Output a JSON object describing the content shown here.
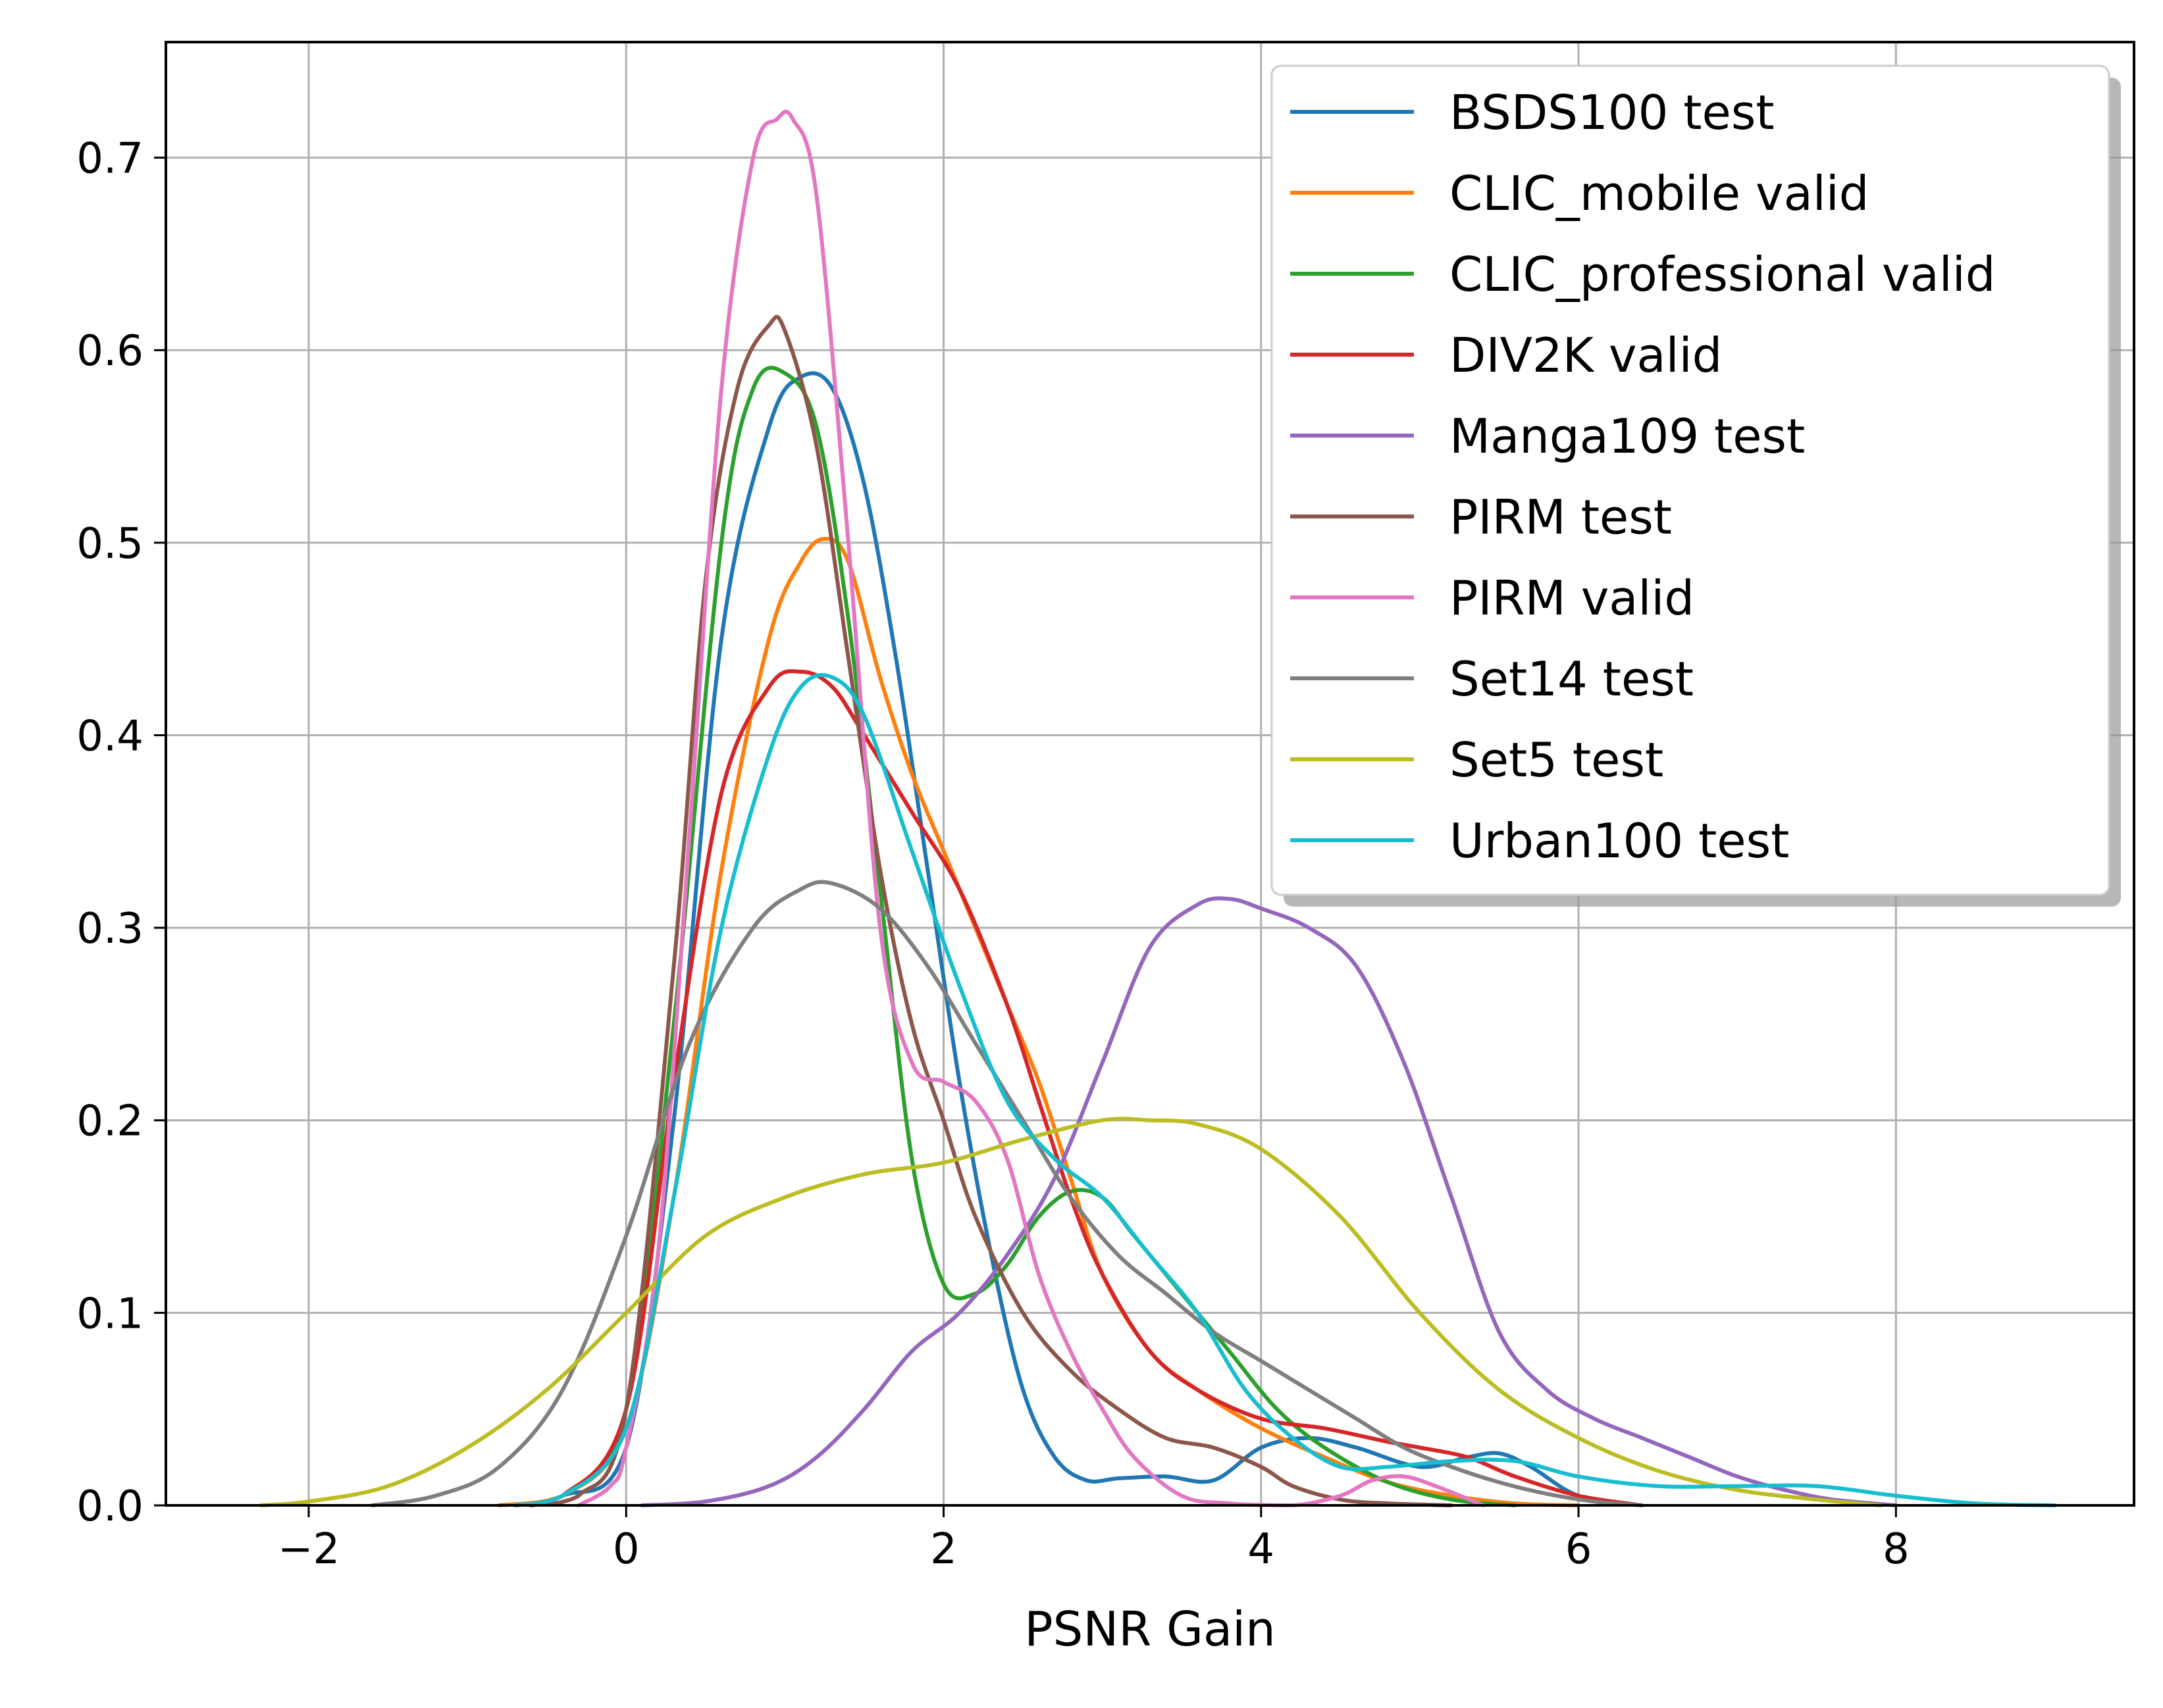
{
  "chart_data": {
    "type": "line",
    "title": "",
    "xlabel": "PSNR Gain",
    "ylabel": "",
    "xlim": [
      -2.9,
      9.5
    ],
    "ylim": [
      0.0,
      0.76
    ],
    "xticks": [
      -2,
      0,
      2,
      4,
      6,
      8
    ],
    "xtick_labels": [
      "−2",
      "0",
      "2",
      "4",
      "6",
      "8"
    ],
    "yticks": [
      0.0,
      0.1,
      0.2,
      0.3,
      0.4,
      0.5,
      0.6,
      0.7
    ],
    "ytick_labels": [
      "0.0",
      "0.1",
      "0.2",
      "0.3",
      "0.4",
      "0.5",
      "0.6",
      "0.7"
    ],
    "grid": true,
    "legend_position": "top-right",
    "series": [
      {
        "name": "BSDS100 test",
        "color": "#1f77b4",
        "x": [
          -0.8,
          -0.4,
          0,
          0.3,
          0.6,
          0.9,
          1.1,
          1.3,
          1.5,
          1.7,
          1.9,
          2.1,
          2.3,
          2.5,
          2.7,
          2.9,
          3.1,
          3.4,
          3.7,
          4.0,
          4.3,
          4.6,
          5.0,
          5.3,
          5.5,
          5.7,
          6.0,
          6.4
        ],
        "y": [
          0,
          0.005,
          0.03,
          0.2,
          0.45,
          0.56,
          0.586,
          0.58,
          0.53,
          0.44,
          0.33,
          0.22,
          0.13,
          0.06,
          0.025,
          0.013,
          0.014,
          0.015,
          0.013,
          0.03,
          0.035,
          0.03,
          0.02,
          0.025,
          0.027,
          0.02,
          0.005,
          0
        ]
      },
      {
        "name": "CLIC_mobile valid",
        "color": "#ff7f0e",
        "x": [
          -0.8,
          -0.4,
          0,
          0.3,
          0.6,
          0.9,
          1.1,
          1.25,
          1.4,
          1.6,
          1.8,
          2.0,
          2.2,
          2.4,
          2.6,
          2.8,
          3.0,
          3.3,
          3.6,
          4.0,
          4.4,
          4.8,
          5.2,
          5.6,
          6.0
        ],
        "y": [
          0,
          0.005,
          0.04,
          0.16,
          0.33,
          0.45,
          0.49,
          0.502,
          0.49,
          0.43,
          0.38,
          0.34,
          0.3,
          0.26,
          0.22,
          0.17,
          0.12,
          0.08,
          0.06,
          0.04,
          0.025,
          0.012,
          0.005,
          0.001,
          0
        ]
      },
      {
        "name": "CLIC_professional valid",
        "color": "#2ca02c",
        "x": [
          -0.7,
          -0.4,
          0,
          0.3,
          0.6,
          0.8,
          1.0,
          1.2,
          1.4,
          1.6,
          1.8,
          2.0,
          2.2,
          2.4,
          2.6,
          2.8,
          3.0,
          3.2,
          3.5,
          3.8,
          4.1,
          4.4,
          4.8,
          5.2,
          5.6
        ],
        "y": [
          0,
          0.005,
          0.05,
          0.25,
          0.5,
          0.58,
          0.588,
          0.56,
          0.46,
          0.32,
          0.18,
          0.115,
          0.11,
          0.125,
          0.15,
          0.163,
          0.16,
          0.14,
          0.11,
          0.08,
          0.05,
          0.03,
          0.012,
          0.003,
          0
        ]
      },
      {
        "name": "DIV2K valid",
        "color": "#d62728",
        "x": [
          -0.7,
          -0.4,
          0,
          0.3,
          0.6,
          0.9,
          1.1,
          1.3,
          1.5,
          1.8,
          2.1,
          2.4,
          2.6,
          2.8,
          3.0,
          3.3,
          3.6,
          4.0,
          4.4,
          4.8,
          5.0,
          5.3,
          5.6,
          6.0,
          6.4
        ],
        "y": [
          0,
          0.005,
          0.05,
          0.22,
          0.37,
          0.425,
          0.433,
          0.425,
          0.4,
          0.36,
          0.32,
          0.26,
          0.21,
          0.16,
          0.12,
          0.08,
          0.06,
          0.045,
          0.04,
          0.033,
          0.03,
          0.025,
          0.015,
          0.005,
          0
        ]
      },
      {
        "name": "Manga109 test",
        "color": "#9467bd",
        "x": [
          0.1,
          0.5,
          0.9,
          1.2,
          1.5,
          1.8,
          2.1,
          2.4,
          2.7,
          3.0,
          3.3,
          3.6,
          3.8,
          4.0,
          4.3,
          4.6,
          4.9,
          5.2,
          5.5,
          5.8,
          6.1,
          6.4,
          6.7,
          7.0,
          7.3,
          7.6,
          8.0
        ],
        "y": [
          0,
          0.002,
          0.01,
          0.025,
          0.05,
          0.08,
          0.1,
          0.13,
          0.17,
          0.23,
          0.29,
          0.312,
          0.315,
          0.31,
          0.3,
          0.28,
          0.23,
          0.16,
          0.09,
          0.06,
          0.045,
          0.035,
          0.025,
          0.015,
          0.008,
          0.003,
          0
        ]
      },
      {
        "name": "PIRM test",
        "color": "#8c564b",
        "x": [
          -0.6,
          -0.3,
          0,
          0.3,
          0.5,
          0.7,
          0.9,
          1.0,
          1.2,
          1.4,
          1.6,
          1.8,
          2.0,
          2.2,
          2.5,
          2.8,
          3.1,
          3.4,
          3.7,
          4.0,
          4.2,
          4.5,
          4.8,
          5.2
        ],
        "y": [
          0,
          0.005,
          0.05,
          0.28,
          0.48,
          0.58,
          0.613,
          0.61,
          0.55,
          0.44,
          0.33,
          0.25,
          0.2,
          0.15,
          0.1,
          0.07,
          0.05,
          0.035,
          0.03,
          0.02,
          0.01,
          0.003,
          0.001,
          0
        ]
      },
      {
        "name": "PIRM valid",
        "color": "#e377c2",
        "x": [
          -0.3,
          -0.1,
          0,
          0.2,
          0.4,
          0.6,
          0.8,
          0.95,
          1.05,
          1.2,
          1.4,
          1.6,
          1.8,
          2.0,
          2.2,
          2.4,
          2.6,
          2.8,
          3.0,
          3.2,
          3.5,
          3.8,
          4.2,
          4.5,
          4.7,
          4.9,
          5.1,
          5.4
        ],
        "y": [
          0,
          0.01,
          0.03,
          0.13,
          0.35,
          0.58,
          0.7,
          0.72,
          0.72,
          0.68,
          0.5,
          0.3,
          0.23,
          0.22,
          0.21,
          0.18,
          0.12,
          0.08,
          0.05,
          0.025,
          0.005,
          0.001,
          0,
          0.005,
          0.013,
          0.015,
          0.01,
          0
        ]
      },
      {
        "name": "Set14 test",
        "color": "#7f7f7f",
        "x": [
          -1.6,
          -1.2,
          -0.8,
          -0.4,
          0,
          0.4,
          0.8,
          1.1,
          1.3,
          1.6,
          1.9,
          2.2,
          2.5,
          2.8,
          3.1,
          3.4,
          3.7,
          4.0,
          4.3,
          4.6,
          4.9,
          5.2,
          5.5,
          5.8,
          6.1,
          6.4
        ],
        "y": [
          0,
          0.005,
          0.02,
          0.06,
          0.14,
          0.24,
          0.3,
          0.32,
          0.323,
          0.31,
          0.28,
          0.24,
          0.2,
          0.16,
          0.13,
          0.11,
          0.09,
          0.075,
          0.06,
          0.045,
          0.03,
          0.02,
          0.012,
          0.006,
          0.002,
          0
        ]
      },
      {
        "name": "Set5 test",
        "color": "#bcbd22",
        "x": [
          -2.3,
          -2.0,
          -1.5,
          -1.0,
          -0.5,
          0,
          0.5,
          1.0,
          1.5,
          2.0,
          2.5,
          3.0,
          3.3,
          3.6,
          4.0,
          4.5,
          5.0,
          5.5,
          6.0,
          6.5,
          7.0,
          7.5,
          7.9
        ],
        "y": [
          0,
          0.002,
          0.01,
          0.03,
          0.06,
          0.1,
          0.14,
          0.16,
          0.172,
          0.178,
          0.19,
          0.2,
          0.2,
          0.198,
          0.185,
          0.15,
          0.1,
          0.06,
          0.035,
          0.018,
          0.008,
          0.003,
          0
        ]
      },
      {
        "name": "Urban100 test",
        "color": "#17becf",
        "x": [
          -0.7,
          -0.4,
          0,
          0.3,
          0.6,
          0.9,
          1.1,
          1.3,
          1.5,
          1.8,
          2.1,
          2.4,
          2.7,
          3.0,
          3.3,
          3.6,
          3.9,
          4.2,
          4.5,
          4.8,
          5.2,
          5.6,
          6.0,
          6.5,
          7.0,
          7.5,
          8.0,
          8.5,
          9.0
        ],
        "y": [
          0,
          0.005,
          0.04,
          0.16,
          0.3,
          0.39,
          0.425,
          0.43,
          0.41,
          0.34,
          0.27,
          0.21,
          0.18,
          0.16,
          0.13,
          0.1,
          0.06,
          0.035,
          0.02,
          0.02,
          0.023,
          0.023,
          0.015,
          0.01,
          0.01,
          0.01,
          0.005,
          0.001,
          0
        ]
      }
    ]
  }
}
